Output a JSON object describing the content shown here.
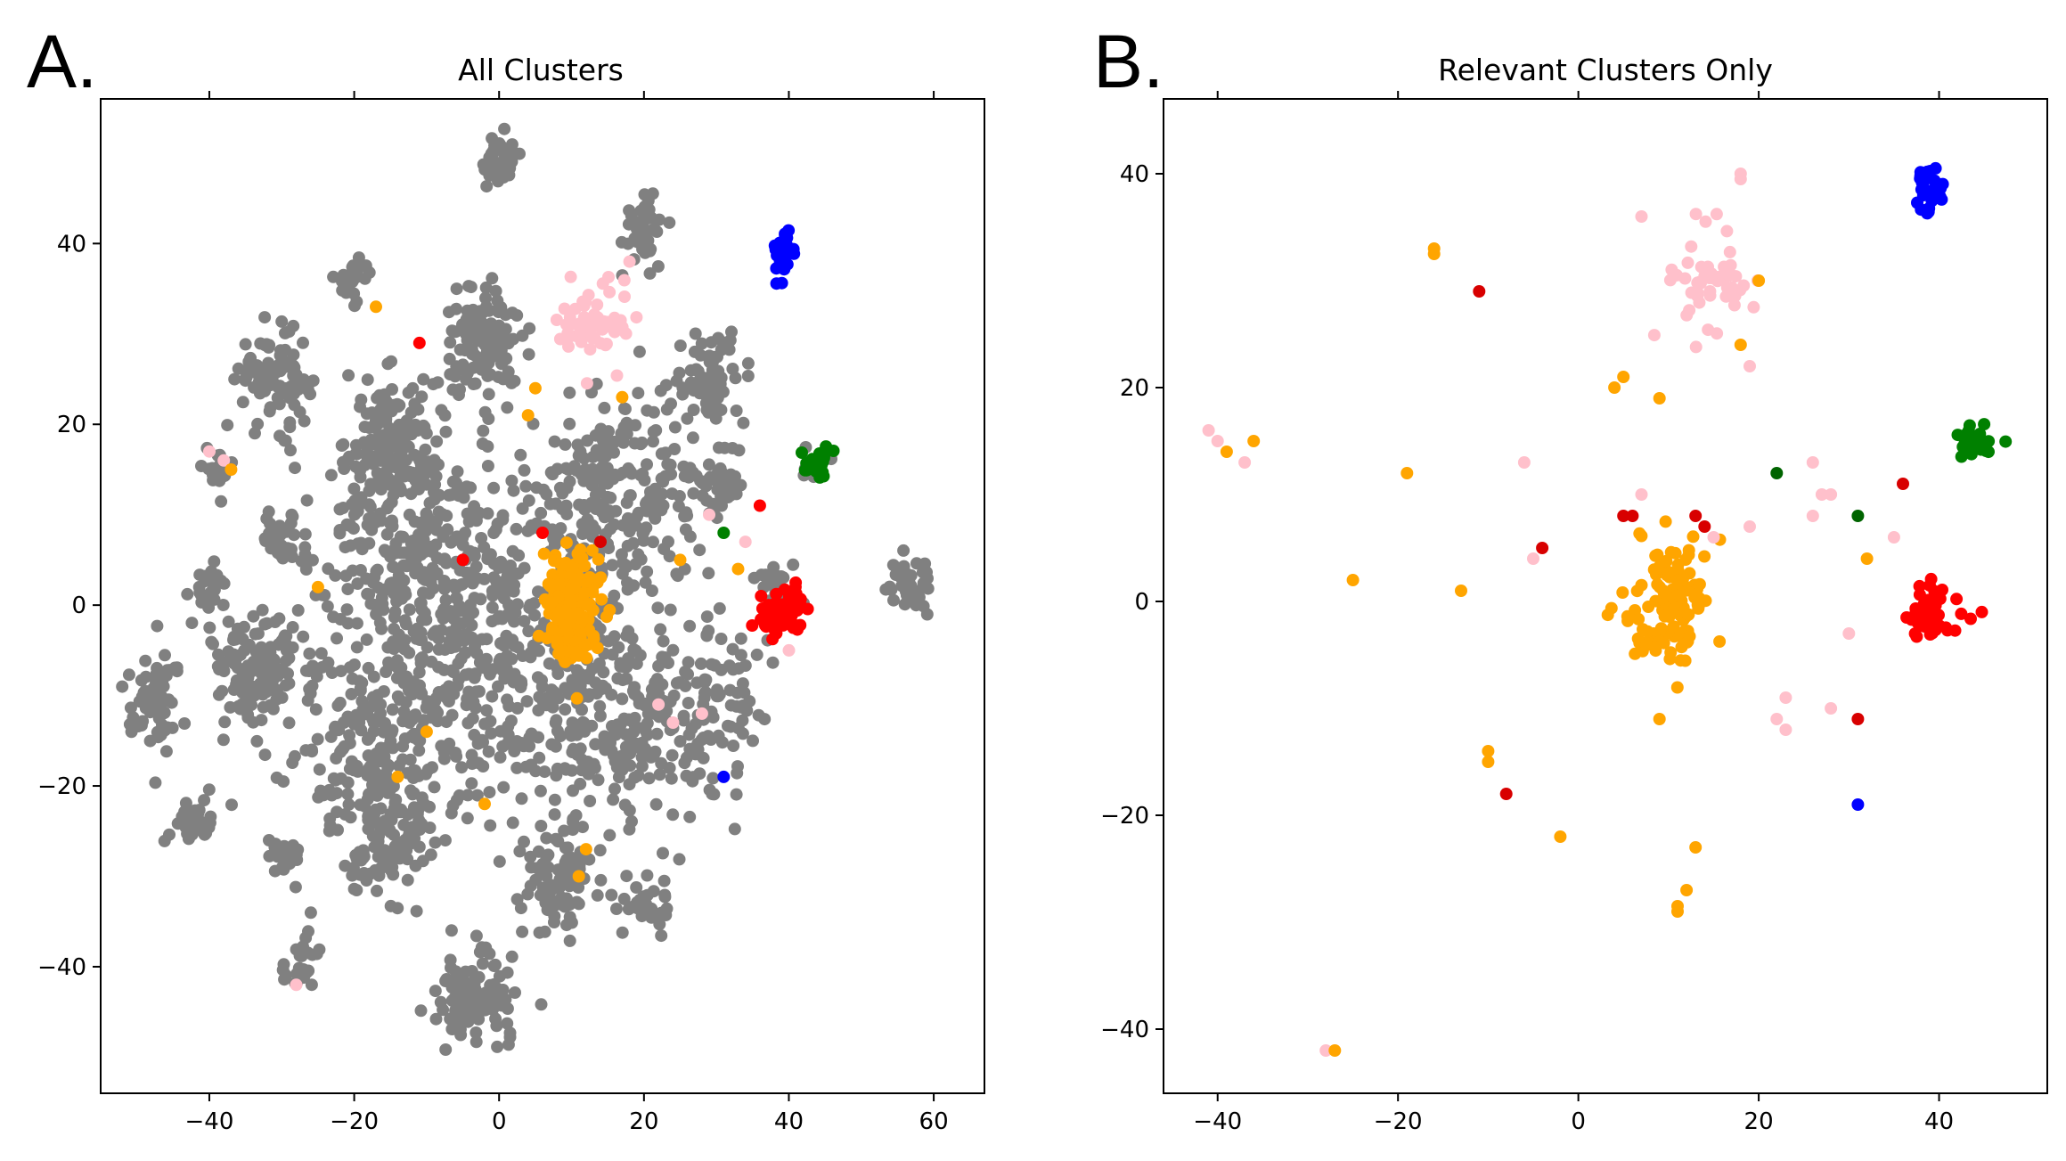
{
  "colors": {
    "gray": "#808080",
    "orange": "#ffa500",
    "pink": "#ffc0cb",
    "red": "#ff0000",
    "darkred": "#d80000",
    "blue": "#0000ff",
    "green": "#008000",
    "darkgreen": "#006400"
  },
  "chart_data": [
    {
      "type": "scatter",
      "panel_label": "A.",
      "title": "All Clusters",
      "xlabel": "",
      "ylabel": "",
      "xlim": [
        -55,
        67
      ],
      "ylim": [
        -54,
        56
      ],
      "xticks": [
        -40,
        -20,
        0,
        20,
        40,
        60
      ],
      "yticks": [
        -40,
        -20,
        0,
        20,
        40
      ],
      "tick_labels": {
        "x": [
          "−40",
          "−20",
          "0",
          "20",
          "40",
          "60"
        ],
        "y": [
          "−40",
          "−20",
          "0",
          "20",
          "40"
        ]
      },
      "grid": false,
      "clusters": [
        {
          "color": "gray",
          "cx": 0,
          "cy": 49,
          "sx": 1.5,
          "sy": 1.5,
          "n": 40
        },
        {
          "color": "gray",
          "cx": 20,
          "cy": 42,
          "sx": 1.5,
          "sy": 2,
          "n": 40
        },
        {
          "color": "gray",
          "cx": -20,
          "cy": 36,
          "sx": 1.2,
          "sy": 1.2,
          "n": 25
        },
        {
          "color": "gray",
          "cx": -31,
          "cy": 25,
          "sx": 2.5,
          "sy": 2.5,
          "n": 90
        },
        {
          "color": "gray",
          "cx": -2,
          "cy": 29,
          "sx": 2.8,
          "sy": 2.8,
          "n": 120
        },
        {
          "color": "gray",
          "cx": 29,
          "cy": 25,
          "sx": 2.5,
          "sy": 2.5,
          "n": 70
        },
        {
          "color": "gray",
          "cx": -15,
          "cy": 18,
          "sx": 3,
          "sy": 4,
          "n": 150
        },
        {
          "color": "gray",
          "cx": -39,
          "cy": 15,
          "sx": 1.2,
          "sy": 1.2,
          "n": 20
        },
        {
          "color": "gray",
          "cx": -30,
          "cy": 7,
          "sx": 1.5,
          "sy": 1.5,
          "n": 30
        },
        {
          "color": "gray",
          "cx": -40,
          "cy": 2,
          "sx": 1.2,
          "sy": 1.5,
          "n": 25
        },
        {
          "color": "gray",
          "cx": 16,
          "cy": 12,
          "sx": 6,
          "sy": 6,
          "n": 260
        },
        {
          "color": "gray",
          "cx": -10,
          "cy": 5,
          "sx": 8,
          "sy": 6,
          "n": 300
        },
        {
          "color": "gray",
          "cx": 30,
          "cy": 14,
          "sx": 2,
          "sy": 2,
          "n": 40
        },
        {
          "color": "gray",
          "cx": -48,
          "cy": -10,
          "sx": 2,
          "sy": 3,
          "n": 70
        },
        {
          "color": "gray",
          "cx": -33,
          "cy": -7,
          "sx": 3.5,
          "sy": 3,
          "n": 130
        },
        {
          "color": "gray",
          "cx": -15,
          "cy": -15,
          "sx": 7,
          "sy": 6,
          "n": 250
        },
        {
          "color": "gray",
          "cx": 15,
          "cy": -12,
          "sx": 7,
          "sy": 6,
          "n": 250
        },
        {
          "color": "gray",
          "cx": 0,
          "cy": -5,
          "sx": 8,
          "sy": 6,
          "n": 200
        },
        {
          "color": "gray",
          "cx": 30,
          "cy": -12,
          "sx": 3,
          "sy": 5,
          "n": 80
        },
        {
          "color": "gray",
          "cx": -42,
          "cy": -24,
          "sx": 1.5,
          "sy": 1.5,
          "n": 35
        },
        {
          "color": "gray",
          "cx": -30,
          "cy": -28,
          "sx": 1.2,
          "sy": 1.2,
          "n": 25
        },
        {
          "color": "gray",
          "cx": -16,
          "cy": -26,
          "sx": 3,
          "sy": 3,
          "n": 100
        },
        {
          "color": "gray",
          "cx": 8,
          "cy": -30,
          "sx": 3,
          "sy": 3,
          "n": 90
        },
        {
          "color": "gray",
          "cx": 20,
          "cy": -33,
          "sx": 2,
          "sy": 2,
          "n": 30
        },
        {
          "color": "gray",
          "cx": -27,
          "cy": -39,
          "sx": 1.2,
          "sy": 2,
          "n": 25
        },
        {
          "color": "gray",
          "cx": -3,
          "cy": -43,
          "sx": 3,
          "sy": 3,
          "n": 110
        },
        {
          "color": "gray",
          "cx": 57,
          "cy": 2,
          "sx": 1.5,
          "sy": 1.5,
          "n": 40
        },
        {
          "color": "gray",
          "cx": 38,
          "cy": 2,
          "sx": 1.5,
          "sy": 1.5,
          "n": 20
        },
        {
          "color": "gray",
          "cx": 44,
          "cy": 15,
          "sx": 1,
          "sy": 1,
          "n": 10
        },
        {
          "color": "pink",
          "cx": 13,
          "cy": 31,
          "sx": 2.3,
          "sy": 2.2,
          "n": 55
        },
        {
          "color": "orange",
          "cx": 10,
          "cy": 0,
          "sx": 1.8,
          "sy": 3,
          "n": 170
        },
        {
          "color": "red",
          "cx": 39,
          "cy": -1,
          "sx": 1.8,
          "sy": 1.3,
          "n": 65
        },
        {
          "color": "blue",
          "cx": 39,
          "cy": 39,
          "sx": 0.9,
          "sy": 1.2,
          "n": 28
        },
        {
          "color": "green",
          "cx": 44,
          "cy": 16,
          "sx": 1.1,
          "sy": 0.9,
          "n": 32
        }
      ],
      "points": [
        {
          "x": -17,
          "y": 33,
          "c": "orange"
        },
        {
          "x": -11,
          "y": 29,
          "c": "red"
        },
        {
          "x": 6,
          "y": 8,
          "c": "red"
        },
        {
          "x": -5,
          "y": 5,
          "c": "red"
        },
        {
          "x": 14,
          "y": 7,
          "c": "darkred"
        },
        {
          "x": 36,
          "y": 11,
          "c": "red"
        },
        {
          "x": 31,
          "y": 8,
          "c": "green"
        },
        {
          "x": 31,
          "y": -19,
          "c": "blue"
        },
        {
          "x": -25,
          "y": 2,
          "c": "orange"
        },
        {
          "x": -10,
          "y": -14,
          "c": "orange"
        },
        {
          "x": -2,
          "y": -22,
          "c": "orange"
        },
        {
          "x": 12,
          "y": -27,
          "c": "orange"
        },
        {
          "x": 11,
          "y": -30,
          "c": "orange"
        },
        {
          "x": -38,
          "y": 16,
          "c": "pink"
        },
        {
          "x": -40,
          "y": 17,
          "c": "pink"
        },
        {
          "x": -37,
          "y": 15,
          "c": "orange"
        },
        {
          "x": 4,
          "y": 21,
          "c": "orange"
        },
        {
          "x": 18,
          "y": 38,
          "c": "pink"
        },
        {
          "x": 17,
          "y": 23,
          "c": "orange"
        },
        {
          "x": 29,
          "y": 10,
          "c": "pink"
        },
        {
          "x": 33,
          "y": 4,
          "c": "orange"
        },
        {
          "x": 34,
          "y": 7,
          "c": "pink"
        },
        {
          "x": 22,
          "y": -11,
          "c": "pink"
        },
        {
          "x": 24,
          "y": -13,
          "c": "pink"
        },
        {
          "x": 28,
          "y": -12,
          "c": "pink"
        },
        {
          "x": 40,
          "y": -5,
          "c": "pink"
        },
        {
          "x": -28,
          "y": -42,
          "c": "pink"
        },
        {
          "x": 5,
          "y": 24,
          "c": "orange"
        },
        {
          "x": 25,
          "y": 5,
          "c": "orange"
        },
        {
          "x": -14,
          "y": -19,
          "c": "orange"
        }
      ]
    },
    {
      "type": "scatter",
      "panel_label": "B.",
      "title": "Relevant Clusters Only",
      "xlabel": "",
      "ylabel": "",
      "xlim": [
        -46,
        52
      ],
      "ylim": [
        -46,
        47
      ],
      "xticks": [
        -40,
        -20,
        0,
        20,
        40
      ],
      "yticks": [
        -40,
        -20,
        0,
        20,
        40
      ],
      "tick_labels": {
        "x": [
          "−40",
          "−20",
          "0",
          "20",
          "40"
        ],
        "y": [
          "−40",
          "−20",
          "0",
          "20",
          "40"
        ]
      },
      "grid": false,
      "clusters": [
        {
          "color": "pink",
          "cx": 15,
          "cy": 30,
          "sx": 2.5,
          "sy": 2.5,
          "n": 50
        },
        {
          "color": "orange",
          "cx": 10,
          "cy": 0,
          "sx": 2.4,
          "sy": 3,
          "n": 120
        },
        {
          "color": "red",
          "cx": 39,
          "cy": -1,
          "sx": 1.8,
          "sy": 1.4,
          "n": 55
        },
        {
          "color": "blue",
          "cx": 39,
          "cy": 39,
          "sx": 0.9,
          "sy": 1.1,
          "n": 26
        },
        {
          "color": "green",
          "cx": 44,
          "cy": 15,
          "sx": 1.2,
          "sy": 0.8,
          "n": 30
        }
      ],
      "points": [
        {
          "x": -16,
          "y": 33,
          "c": "orange"
        },
        {
          "x": -16,
          "y": 32.5,
          "c": "orange"
        },
        {
          "x": -11,
          "y": 29,
          "c": "darkred"
        },
        {
          "x": 7,
          "y": 36,
          "c": "pink"
        },
        {
          "x": 18,
          "y": 40,
          "c": "pink"
        },
        {
          "x": 18,
          "y": 39.5,
          "c": "pink"
        },
        {
          "x": 20,
          "y": 30,
          "c": "orange"
        },
        {
          "x": 18,
          "y": 24,
          "c": "orange"
        },
        {
          "x": 19,
          "y": 22,
          "c": "pink"
        },
        {
          "x": 5,
          "y": 21,
          "c": "orange"
        },
        {
          "x": 4,
          "y": 20,
          "c": "orange"
        },
        {
          "x": 9,
          "y": 19,
          "c": "orange"
        },
        {
          "x": -41,
          "y": 16,
          "c": "pink"
        },
        {
          "x": -40,
          "y": 15,
          "c": "pink"
        },
        {
          "x": -39,
          "y": 14,
          "c": "orange"
        },
        {
          "x": -37,
          "y": 13,
          "c": "pink"
        },
        {
          "x": -36,
          "y": 15,
          "c": "orange"
        },
        {
          "x": -19,
          "y": 12,
          "c": "orange"
        },
        {
          "x": -6,
          "y": 13,
          "c": "pink"
        },
        {
          "x": 5,
          "y": 8,
          "c": "darkred"
        },
        {
          "x": 6,
          "y": 8,
          "c": "darkred"
        },
        {
          "x": 7,
          "y": 10,
          "c": "pink"
        },
        {
          "x": -4,
          "y": 5,
          "c": "darkred"
        },
        {
          "x": -5,
          "y": 4,
          "c": "pink"
        },
        {
          "x": 14,
          "y": 7,
          "c": "darkred"
        },
        {
          "x": 13,
          "y": 8,
          "c": "darkred"
        },
        {
          "x": 15,
          "y": 6,
          "c": "pink"
        },
        {
          "x": 19,
          "y": 7,
          "c": "pink"
        },
        {
          "x": 22,
          "y": 12,
          "c": "darkgreen"
        },
        {
          "x": 31,
          "y": 8,
          "c": "darkgreen"
        },
        {
          "x": 26,
          "y": 13,
          "c": "pink"
        },
        {
          "x": 27,
          "y": 10,
          "c": "pink"
        },
        {
          "x": 28,
          "y": 10,
          "c": "pink"
        },
        {
          "x": 26,
          "y": 8,
          "c": "pink"
        },
        {
          "x": 35,
          "y": 6,
          "c": "pink"
        },
        {
          "x": 32,
          "y": 4,
          "c": "orange"
        },
        {
          "x": 36,
          "y": 11,
          "c": "darkred"
        },
        {
          "x": -25,
          "y": 2,
          "c": "orange"
        },
        {
          "x": -13,
          "y": 1,
          "c": "orange"
        },
        {
          "x": 30,
          "y": -3,
          "c": "pink"
        },
        {
          "x": 23,
          "y": -9,
          "c": "pink"
        },
        {
          "x": 22,
          "y": -11,
          "c": "pink"
        },
        {
          "x": 23,
          "y": -12,
          "c": "pink"
        },
        {
          "x": 28,
          "y": -10,
          "c": "pink"
        },
        {
          "x": 31,
          "y": -11,
          "c": "darkred"
        },
        {
          "x": 9,
          "y": -11,
          "c": "orange"
        },
        {
          "x": -10,
          "y": -14,
          "c": "orange"
        },
        {
          "x": -10,
          "y": -15,
          "c": "orange"
        },
        {
          "x": -8,
          "y": -18,
          "c": "darkred"
        },
        {
          "x": 31,
          "y": -19,
          "c": "blue"
        },
        {
          "x": -2,
          "y": -22,
          "c": "orange"
        },
        {
          "x": 13,
          "y": -23,
          "c": "orange"
        },
        {
          "x": 12,
          "y": -27,
          "c": "orange"
        },
        {
          "x": 11,
          "y": -29,
          "c": "orange"
        },
        {
          "x": 11,
          "y": -28.5,
          "c": "orange"
        },
        {
          "x": -28,
          "y": -42,
          "c": "pink"
        },
        {
          "x": -27,
          "y": -42,
          "c": "orange"
        }
      ]
    }
  ]
}
